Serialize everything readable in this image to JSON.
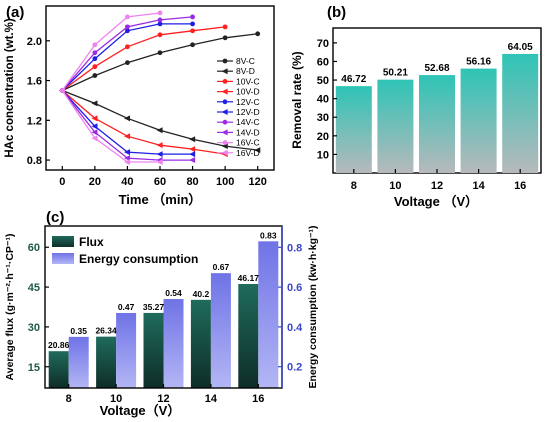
{
  "chart_data": [
    {
      "panel": "(a)",
      "type": "line",
      "xlabel": "Time （min）",
      "ylabel": "HAc concentration (wt.%)",
      "xlim": [
        -10,
        130
      ],
      "ylim": [
        0.7,
        2.35
      ],
      "xticks": [
        "0",
        "20",
        "40",
        "60",
        "80",
        "100",
        "120"
      ],
      "yticks": [
        "0.8",
        "1.2",
        "1.6",
        "2.0"
      ],
      "legend_position": "right",
      "series": [
        {
          "name": "8V-C",
          "color": "#222222",
          "marker": "circle",
          "x": [
            0,
            20,
            40,
            60,
            80,
            100,
            120
          ],
          "y": [
            1.5,
            1.65,
            1.78,
            1.88,
            1.96,
            2.03,
            2.07
          ]
        },
        {
          "name": "8V-D",
          "color": "#222222",
          "marker": "triangle",
          "x": [
            0,
            20,
            40,
            60,
            80,
            100,
            120
          ],
          "y": [
            1.5,
            1.37,
            1.22,
            1.1,
            1.01,
            0.94,
            0.9
          ]
        },
        {
          "name": "10V-C",
          "color": "#ff2020",
          "marker": "circle",
          "x": [
            0,
            20,
            40,
            60,
            80,
            100
          ],
          "y": [
            1.5,
            1.74,
            1.94,
            2.06,
            2.1,
            2.14
          ]
        },
        {
          "name": "10V-D",
          "color": "#ff2020",
          "marker": "triangle",
          "x": [
            0,
            20,
            40,
            60,
            80,
            100
          ],
          "y": [
            1.5,
            1.22,
            1.04,
            0.95,
            0.91,
            0.86
          ]
        },
        {
          "name": "12V-C",
          "color": "#1e1ee6",
          "marker": "circle",
          "x": [
            0,
            20,
            40,
            60,
            80
          ],
          "y": [
            1.5,
            1.82,
            2.1,
            2.17,
            2.17
          ]
        },
        {
          "name": "12V-D",
          "color": "#1e1ee6",
          "marker": "triangle",
          "x": [
            0,
            20,
            40,
            60,
            80
          ],
          "y": [
            1.5,
            1.14,
            0.88,
            0.86,
            0.86
          ]
        },
        {
          "name": "14V-C",
          "color": "#9a2be2",
          "marker": "circle",
          "x": [
            0,
            20,
            40,
            60,
            80
          ],
          "y": [
            1.5,
            1.88,
            2.14,
            2.21,
            2.24
          ]
        },
        {
          "name": "14V-D",
          "color": "#9a2be2",
          "marker": "triangle",
          "x": [
            0,
            20,
            40,
            60,
            80
          ],
          "y": [
            1.5,
            1.08,
            0.82,
            0.8,
            0.8
          ]
        },
        {
          "name": "16V-C",
          "color": "#ee82ee",
          "marker": "circle",
          "x": [
            0,
            20,
            40,
            60
          ],
          "y": [
            1.5,
            1.96,
            2.24,
            2.28
          ]
        },
        {
          "name": "16V-D",
          "color": "#ee82ee",
          "marker": "triangle",
          "x": [
            0,
            20,
            40,
            60
          ],
          "y": [
            1.5,
            1.02,
            0.78,
            0.78
          ]
        }
      ]
    },
    {
      "panel": "(b)",
      "type": "bar",
      "xlabel": "Voltage （V）",
      "ylabel": "Removal rate  (%)",
      "categories": [
        "8",
        "10",
        "12",
        "14",
        "16"
      ],
      "values": [
        46.72,
        50.21,
        52.68,
        56.16,
        64.05
      ],
      "value_labels": [
        "46.72",
        "50.21",
        "52.68",
        "56.16",
        "64.05"
      ],
      "ylim": [
        0,
        78
      ],
      "yticks": [
        "10",
        "20",
        "30",
        "40",
        "50",
        "60",
        "70"
      ],
      "bar_color_top": "#2ec4b6",
      "bar_color_bottom": "#b7b9bb"
    },
    {
      "panel": "(c)",
      "type": "bar",
      "xlabel": "Voltage（V）",
      "ylabel_left": "Average flux (g·m⁻²·h⁻¹·CP⁻¹)",
      "ylabel_right": "Energy consumption (kw·h·kg⁻¹)",
      "categories": [
        "8",
        "10",
        "12",
        "14",
        "16"
      ],
      "ylim_left": [
        7,
        68
      ],
      "ylim_right": [
        0.093,
        0.907
      ],
      "yticks_left": [
        "15",
        "30",
        "45",
        "60"
      ],
      "yticks_right": [
        "0.2",
        "0.4",
        "0.6",
        "0.8"
      ],
      "legend_position": "top-left",
      "series": [
        {
          "name": "Flux",
          "axis": "left",
          "values": [
            20.86,
            26.34,
            35.27,
            40.2,
            46.17
          ],
          "value_labels": [
            "20.86",
            "26.34",
            "35.27",
            "40.2",
            "46.17"
          ],
          "color_top": "#1f6b5c",
          "color_bottom": "#0e2d27"
        },
        {
          "name": "Energy consumption",
          "axis": "right",
          "values": [
            0.35,
            0.47,
            0.54,
            0.67,
            0.83
          ],
          "value_labels": [
            "0.35",
            "0.47",
            "0.54",
            "0.67",
            "0.83"
          ],
          "color_top": "#6f73e6",
          "color_bottom": "#b3b6f4"
        }
      ],
      "right_axis_color": "#3b47c8"
    }
  ],
  "panel_labels": {
    "a": "(a)",
    "b": "(b)",
    "c": "(c)"
  }
}
